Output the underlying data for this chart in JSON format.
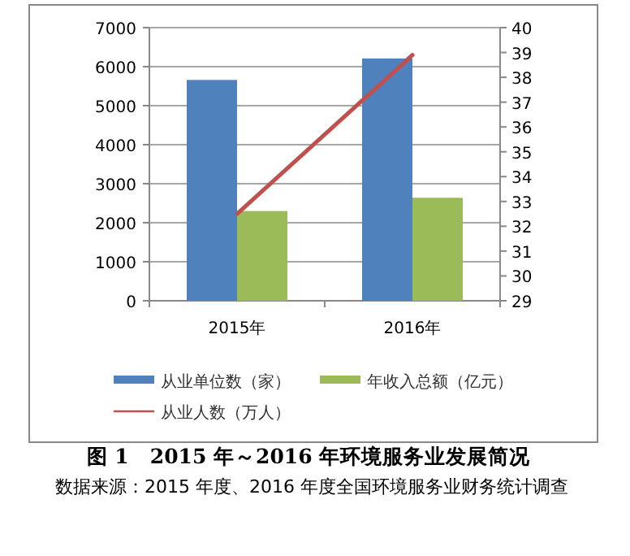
{
  "chart_data": {
    "type": "bar",
    "title": "图 1　2015 年～2016 年环境服务业发展简况",
    "annotations": [
      "数据来源：2015 年度、2016 年度全国环境服务业财务统计调查"
    ],
    "categories": [
      "2015年",
      "2016年"
    ],
    "series": [
      {
        "name": "从业单位数（家）",
        "color": "#4f81bd",
        "values": [
          5660,
          6210
        ]
      },
      {
        "name": "年收入总额（亿元）",
        "color": "#9bbb59",
        "values": [
          2300,
          2640
        ]
      },
      {
        "name": "从业人数（万人）",
        "color": "#c0504d",
        "type": "line",
        "axis": "y2",
        "values": [
          32.5,
          38.9
        ]
      }
    ],
    "ylim": [
      0,
      7000
    ],
    "yticks": [
      0,
      1000,
      2000,
      3000,
      4000,
      5000,
      6000,
      7000
    ],
    "y2lim": [
      29,
      40
    ],
    "y2ticks": [
      29,
      30,
      31,
      32,
      33,
      34,
      35,
      36,
      37,
      38,
      39,
      40
    ],
    "grid": "y",
    "legend": "bottom"
  }
}
